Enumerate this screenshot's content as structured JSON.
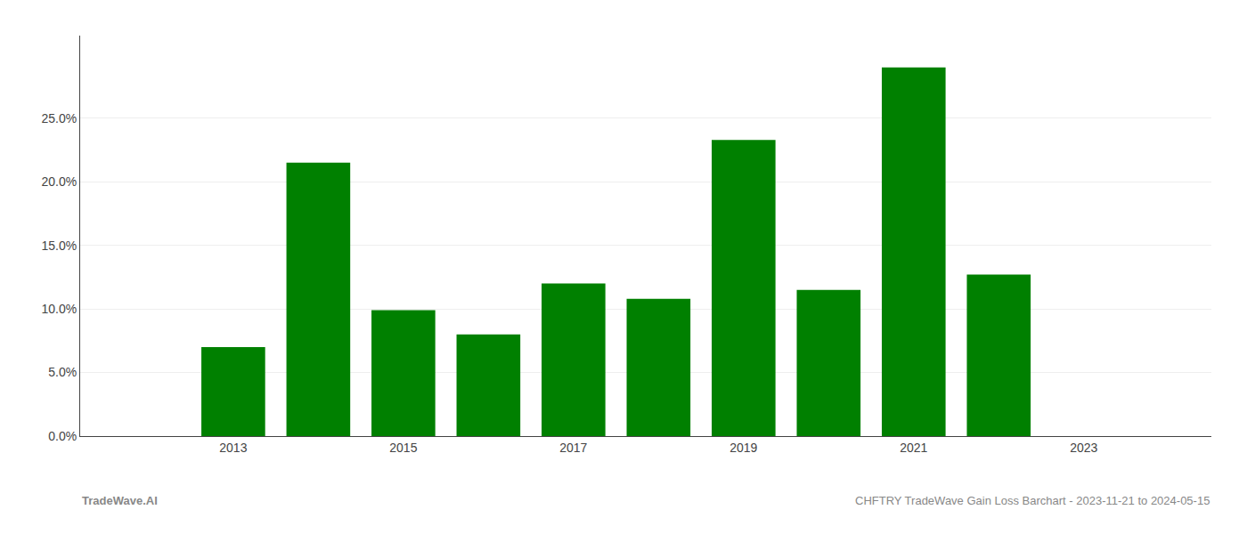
{
  "chart_data": {
    "type": "bar",
    "x": [
      2013,
      2014,
      2015,
      2016,
      2017,
      2018,
      2019,
      2020,
      2021,
      2022
    ],
    "values": [
      0.07,
      0.215,
      0.099,
      0.08,
      0.12,
      0.108,
      0.233,
      0.115,
      0.29,
      0.127
    ],
    "color": "#008000",
    "xlim": [
      2011.2,
      2024.5
    ],
    "xticks": [
      2013,
      2015,
      2017,
      2019,
      2021,
      2023
    ],
    "ylim": [
      0.0,
      0.315
    ],
    "yticks": [
      {
        "value": 0.0,
        "label": "0.0%"
      },
      {
        "value": 0.05,
        "label": "5.0%"
      },
      {
        "value": 0.1,
        "label": "10.0%"
      },
      {
        "value": 0.15,
        "label": "15.0%"
      },
      {
        "value": 0.2,
        "label": "20.0%"
      },
      {
        "value": 0.25,
        "label": "25.0%"
      }
    ],
    "grid": true,
    "annotations": [
      "TradeWave.AI",
      "CHFTRY TradeWave Gain Loss Barchart - 2023-11-21 to 2024-05-15"
    ]
  }
}
